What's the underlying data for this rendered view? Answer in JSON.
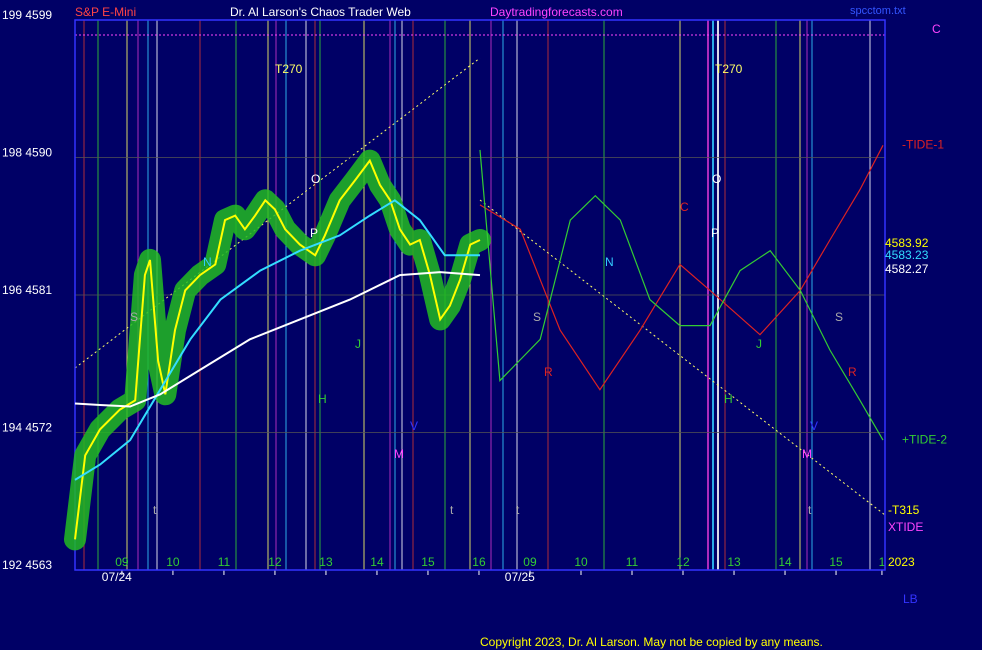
{
  "chart_data": {
    "type": "line",
    "title": "S&P E-Mini",
    "subtitle": "Dr. Al Larson's Chaos Trader Web",
    "site": "Daytradingforecasts.com",
    "file": "spcctom.txt",
    "copyright": "Copyright 2023, Dr. Al Larson. May not be copied by any means.",
    "xlim": [
      -0.92,
      14.96
    ],
    "ylim": [
      4563,
      4599
    ],
    "yticks": [
      {
        "value": 4563,
        "label": "192 4563"
      },
      {
        "value": 4572,
        "label": "194 4572"
      },
      {
        "value": 4581,
        "label": "196 4581"
      },
      {
        "value": 4590,
        "label": "198 4590"
      },
      {
        "value": 4599,
        "label": "199 4599"
      }
    ],
    "xticks": [
      {
        "value": 0,
        "label": "09"
      },
      {
        "value": 1,
        "label": "10"
      },
      {
        "value": 2,
        "label": "11"
      },
      {
        "value": 3,
        "label": "12"
      },
      {
        "value": 4,
        "label": "13"
      },
      {
        "value": 5,
        "label": "14"
      },
      {
        "value": 6,
        "label": "15"
      },
      {
        "value": 7,
        "label": "16"
      },
      {
        "value": 8,
        "label": "09"
      },
      {
        "value": 9,
        "label": "10"
      },
      {
        "value": 10,
        "label": "11"
      },
      {
        "value": 11,
        "label": "12"
      },
      {
        "value": 12,
        "label": "13"
      },
      {
        "value": 13,
        "label": "14"
      },
      {
        "value": 14,
        "label": "15"
      },
      {
        "value": 14.9,
        "label": "1"
      }
    ],
    "dates": [
      {
        "value": -0.1,
        "label": "07/24"
      },
      {
        "value": 7.8,
        "label": "07/25"
      }
    ],
    "grid": true,
    "series": [
      {
        "name": "Price",
        "color": "#ffff00",
        "x": [
          -0.92,
          -0.72,
          -0.43,
          -0.04,
          0.26,
          0.45,
          0.55,
          0.71,
          0.85,
          1.04,
          1.24,
          1.53,
          1.83,
          2.02,
          2.22,
          2.41,
          2.61,
          2.81,
          3.0,
          3.2,
          3.49,
          3.79,
          3.98,
          4.27,
          4.57,
          4.86,
          5.06,
          5.26,
          5.45,
          5.65,
          5.84,
          6.04,
          6.24,
          6.43,
          6.63,
          6.83,
          7.02
        ],
        "values": [
          4565.0,
          4570.5,
          4572.2,
          4573.5,
          4574.1,
          4582.3,
          4583.3,
          4576.7,
          4574.5,
          4578.7,
          4581.3,
          4582.3,
          4583.0,
          4585.9,
          4586.2,
          4585.3,
          4586.2,
          4587.2,
          4586.6,
          4585.3,
          4584.3,
          4583.6,
          4584.9,
          4587.2,
          4588.5,
          4589.8,
          4588.2,
          4587.2,
          4585.3,
          4584.3,
          4584.6,
          4582.3,
          4579.4,
          4580.3,
          4582.0,
          4584.3,
          4584.6
        ],
        "last_label": "4583.92"
      },
      {
        "name": "Fast average",
        "color": "#33ddff",
        "x": [
          -0.92,
          -0.43,
          0.16,
          0.75,
          1.34,
          1.93,
          2.71,
          3.49,
          4.27,
          4.86,
          5.35,
          5.84,
          6.33,
          7.02
        ],
        "values": [
          4568.9,
          4569.9,
          4571.5,
          4574.8,
          4578.1,
          4580.7,
          4582.6,
          4583.9,
          4584.9,
          4586.2,
          4587.2,
          4585.9,
          4583.6,
          4583.6
        ],
        "last_label": "4583.23"
      },
      {
        "name": "Slow average",
        "color": "#ffffff",
        "x": [
          -0.92,
          -0.43,
          0.16,
          0.75,
          1.53,
          2.51,
          3.49,
          4.47,
          5.45,
          6.24,
          7.02
        ],
        "values": [
          4573.9,
          4573.8,
          4573.7,
          4574.5,
          4576.1,
          4578.1,
          4579.4,
          4580.7,
          4582.3,
          4582.5,
          4582.3
        ],
        "last_label": "4582.27"
      },
      {
        "name": "-TIDE-1",
        "color": "#dd2222",
        "x": [
          7.02,
          7.81,
          8.59,
          9.37,
          10.16,
          10.94,
          11.53,
          12.51,
          13.3,
          13.88,
          14.47,
          14.92
        ],
        "values": [
          4586.9,
          4585.3,
          4578.7,
          4574.8,
          4578.7,
          4583.0,
          4581.3,
          4578.4,
          4581.3,
          4584.6,
          4587.9,
          4590.8
        ]
      },
      {
        "name": "+TIDE-2",
        "color": "#33cc33",
        "x": [
          7.02,
          7.41,
          8.2,
          8.79,
          9.28,
          9.77,
          10.35,
          10.94,
          11.53,
          12.12,
          12.71,
          13.3,
          13.88,
          14.47,
          14.92
        ],
        "values": [
          4590.5,
          4575.4,
          4578.1,
          4585.9,
          4587.5,
          4585.9,
          4580.7,
          4579.0,
          4579.0,
          4582.6,
          4583.9,
          4581.3,
          4577.4,
          4574.1,
          4571.5
        ]
      }
    ],
    "side_labels": [
      "C",
      "-T315",
      "XTIDE",
      "2023",
      "LB"
    ],
    "annotations": [
      "T270",
      "T270",
      "S",
      "N",
      "O",
      "P",
      "J",
      "H",
      "V",
      "M",
      "S",
      "N",
      "R",
      "C",
      "O",
      "P",
      "J",
      "H",
      "V",
      "M",
      "S",
      "R",
      "t",
      "t",
      "t",
      "t"
    ]
  }
}
